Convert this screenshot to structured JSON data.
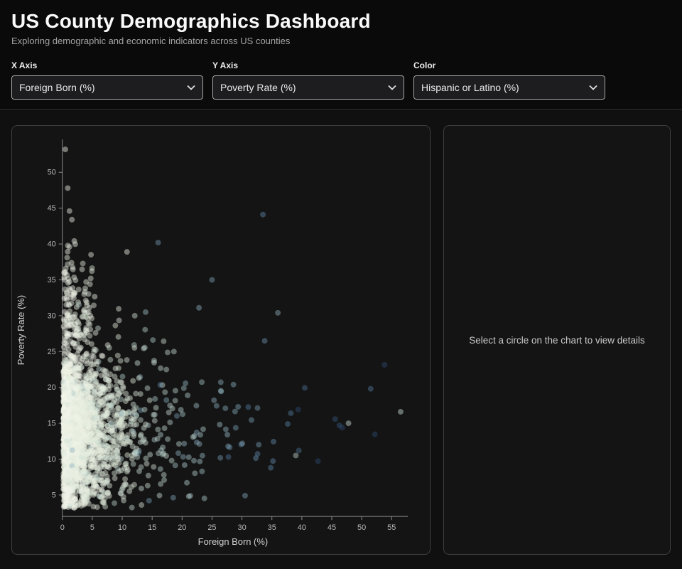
{
  "header": {
    "title": "US County Demographics Dashboard",
    "subtitle": "Exploring demographic and economic indicators across US counties"
  },
  "controls": {
    "x_axis": {
      "label": "X Axis",
      "value": "Foreign Born (%)"
    },
    "y_axis": {
      "label": "Y Axis",
      "value": "Poverty Rate (%)"
    },
    "color": {
      "label": "Color",
      "value": "Hispanic or Latino (%)"
    }
  },
  "details_panel": {
    "placeholder": "Select a circle on the chart to view details"
  },
  "chart_data": {
    "type": "scatter",
    "title": "",
    "xlabel": "Foreign Born (%)",
    "ylabel": "Poverty Rate (%)",
    "xlim": [
      0,
      57
    ],
    "ylim": [
      2,
      54
    ],
    "x_ticks": [
      0,
      5,
      10,
      15,
      20,
      25,
      30,
      35,
      40,
      45,
      50,
      55
    ],
    "y_ticks": [
      5,
      10,
      15,
      20,
      25,
      30,
      35,
      40,
      45,
      50
    ],
    "grid": false,
    "legend": false,
    "point_radius": 4,
    "point_opacity": 0.45,
    "color_scale": [
      "#f5f7ec",
      "#dde8d8",
      "#a8c6c8",
      "#5b84a6",
      "#2c4a70"
    ],
    "color_domain": [
      0,
      75
    ],
    "distribution": {
      "seed": 1337,
      "n": 2600,
      "x_mix": [
        0.78,
        0.985
      ],
      "x_exp_scales": [
        2.8,
        8.5
      ],
      "x_tail_range": [
        15,
        55
      ],
      "y_mean": 13.8,
      "y_sd": 5.4,
      "y_boost_prob": 0.055,
      "y_boost_base": 27,
      "y_boost_sd": 6.5,
      "y_min": 3.2,
      "y_max": 53,
      "color_corr": 1.5,
      "color_exp_scale": 6
    },
    "highlight_points": [
      {
        "x": 0.5,
        "y": 53.2,
        "c": 4
      },
      {
        "x": 0.9,
        "y": 47.8,
        "c": 4
      },
      {
        "x": 1.2,
        "y": 44.6,
        "c": 6
      },
      {
        "x": 1.6,
        "y": 43.4,
        "c": 6
      },
      {
        "x": 33.5,
        "y": 44.1,
        "c": 55
      },
      {
        "x": 16.0,
        "y": 40.2,
        "c": 50
      },
      {
        "x": 10.8,
        "y": 38.9,
        "c": 8
      },
      {
        "x": 25.0,
        "y": 35.0,
        "c": 48
      },
      {
        "x": 36.0,
        "y": 30.4,
        "c": 45
      },
      {
        "x": 33.8,
        "y": 26.5,
        "c": 52
      },
      {
        "x": 51.5,
        "y": 19.8,
        "c": 60
      },
      {
        "x": 56.5,
        "y": 16.6,
        "c": 25
      },
      {
        "x": 47.8,
        "y": 15.0,
        "c": 25
      },
      {
        "x": 39.0,
        "y": 10.5,
        "c": 30
      }
    ]
  }
}
